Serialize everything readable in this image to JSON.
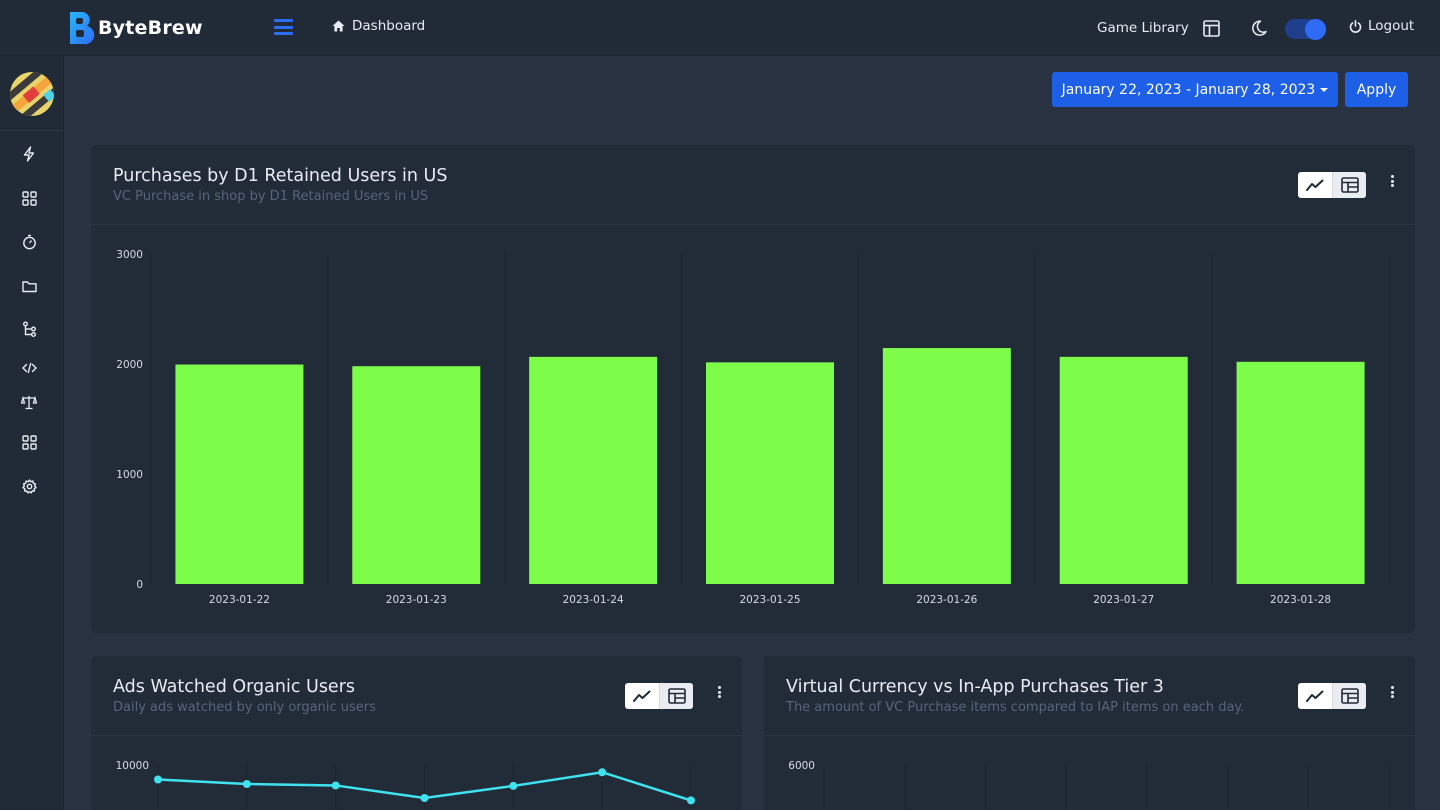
{
  "app": {
    "name": "ByteBrew"
  },
  "nav": {
    "breadcrumb": "Dashboard",
    "game_library": "Game Library",
    "logout": "Logout",
    "dark_mode_on": true
  },
  "sidebar": {
    "icons": [
      "bolt-icon",
      "grid-icon",
      "stopwatch-icon",
      "folder-icon",
      "branch-icon",
      "code-icon",
      "scale-icon",
      "apps-icon",
      "gear-icon"
    ]
  },
  "controls": {
    "date_range": "January 22, 2023 - January 28, 2023",
    "apply": "Apply"
  },
  "colors": {
    "accent": "#1e5fe8",
    "bar": "#7dfc4a",
    "line": "#3fe3f0"
  },
  "cards": {
    "purchases": {
      "title": "Purchases by D1 Retained Users in US",
      "subtitle": "VC Purchase in shop by D1 Retained Users in US"
    },
    "ads": {
      "title": "Ads Watched Organic Users",
      "subtitle": "Daily ads watched by only organic users"
    },
    "vc": {
      "title": "Virtual Currency vs In-App Purchases Tier 3",
      "subtitle": "The amount of VC Purchase items compared to IAP items on each day."
    }
  },
  "chart_data": [
    {
      "type": "bar",
      "categories": [
        "2023-01-22",
        "2023-01-23",
        "2023-01-24",
        "2023-01-25",
        "2023-01-26",
        "2023-01-27",
        "2023-01-28"
      ],
      "values": [
        1995,
        1980,
        2065,
        2015,
        2145,
        2065,
        2020
      ],
      "ylim": [
        0,
        3000
      ],
      "yticks": [
        0,
        1000,
        2000,
        3000
      ],
      "grid": true
    },
    {
      "type": "line",
      "values": [
        9100,
        8820,
        8730,
        7950,
        8700,
        9550,
        7800
      ],
      "ylim_top": 10000,
      "yticks": [
        10000
      ],
      "note": "chart cropped at bottom of screenshot"
    },
    {
      "type": "bar",
      "yticks": [
        6000
      ],
      "note": "chart cropped at bottom of screenshot"
    }
  ]
}
